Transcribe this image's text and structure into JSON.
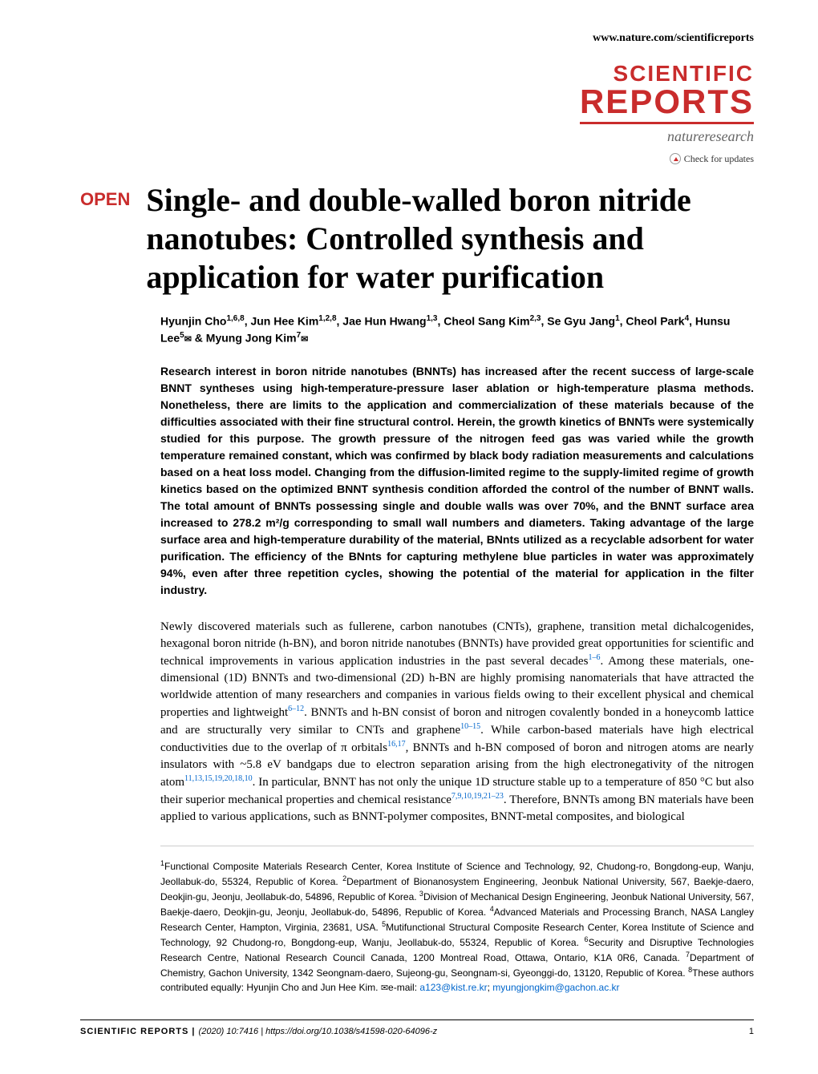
{
  "header": {
    "url": "www.nature.com/scientificreports",
    "logo_line1": "SCIENTIFIC",
    "logo_line2": "REPORTS",
    "logo_sub": "natureresearch",
    "check_updates": "Check for updates"
  },
  "article": {
    "open_badge": "OPEN",
    "title": "Single- and double-walled boron nitride nanotubes: Controlled synthesis and application for water purification",
    "authors_html": "Hyunjin Cho<sup>1,6,8</sup>, Jun Hee Kim<sup>1,2,8</sup>, Jae Hun Hwang<sup>1,3</sup>, Cheol Sang Kim<sup>2,3</sup>, Se Gyu Jang<sup>1</sup>, Cheol Park<sup>4</sup>, Hunsu Lee<sup>5</sup><span class='envelope'>✉</span> & Myung Jong Kim<sup>7</sup><span class='envelope'>✉</span>",
    "abstract": "Research interest in boron nitride nanotubes (BNNTs) has increased after the recent success of large-scale BNNT syntheses using high-temperature-pressure laser ablation or high-temperature plasma methods. Nonetheless, there are limits to the application and commercialization of these materials because of the difficulties associated with their fine structural control. Herein, the growth kinetics of BNNTs were systemically studied for this purpose. The growth pressure of the nitrogen feed gas was varied while the growth temperature remained constant, which was confirmed by black body radiation measurements and calculations based on a heat loss model. Changing from the diffusion-limited regime to the supply-limited regime of growth kinetics based on the optimized BNNT synthesis condition afforded the control of the number of BNNT walls. The total amount of BNNTs possessing single and double walls was over 70%, and the BNNT surface area increased to 278.2 m²/g corresponding to small wall numbers and diameters. Taking advantage of the large surface area and high-temperature durability of the material, BNnts utilized as a recyclable adsorbent for water purification. The efficiency of the BNnts for capturing methylene blue particles in water was approximately 94%, even after three repetition cycles, showing the potential of the material for application in the filter industry.",
    "body_text": "Newly discovered materials such as fullerene, carbon nanotubes (CNTs), graphene, transition metal dichalcogenides, hexagonal boron nitride (h-BN), and boron nitride nanotubes (BNNTs) have provided great opportunities for scientific and technical improvements in various application industries in the past several decades",
    "body_refs1": "1–6",
    "body_text2": ". Among these materials, one-dimensional (1D) BNNTs and two-dimensional (2D) h-BN are highly promising nanomaterials that have attracted the worldwide attention of many researchers and companies in various fields owing to their excellent physical and chemical properties and lightweight",
    "body_refs2": "6–12",
    "body_text3": ". BNNTs and h-BN consist of boron and nitrogen covalently bonded in a honeycomb lattice and are structurally very similar to CNTs and graphene",
    "body_refs3": "10–15",
    "body_text4": ". While carbon-based materials have high electrical conductivities due to the overlap of π orbitals",
    "body_refs4": "16,17",
    "body_text5": ", BNNTs and h-BN composed of boron and nitrogen atoms are nearly insulators with ~5.8 eV bandgaps due to electron separation arising from the high electronegativity of the nitrogen atom",
    "body_refs5": "11,13,15,19,20,18,10",
    "body_text6": ". In particular, BNNT has not only the unique 1D structure stable up to a temperature of 850 °C but also their superior mechanical properties and chemical resistance",
    "body_refs6": "7,9,10,19,21–23",
    "body_text7": ". Therefore, BNNTs among BN materials have been applied to various applications, such as BNNT-polymer composites, BNNT-metal composites, and biological",
    "affiliations_html": "<sup>1</sup>Functional Composite Materials Research Center, Korea Institute of Science and Technology, 92, Chudong-ro, Bongdong-eup, Wanju, Jeollabuk-do, 55324, Republic of Korea. <sup>2</sup>Department of Bionanosystem Engineering, Jeonbuk National University, 567, Baekje-daero, Deokjin-gu, Jeonju, Jeollabuk-do, 54896, Republic of Korea. <sup>3</sup>Division of Mechanical Design Engineering, Jeonbuk National University, 567, Baekje-daero, Deokjin-gu, Jeonju, Jeollabuk-do, 54896, Republic of Korea. <sup>4</sup>Advanced Materials and Processing Branch, NASA Langley Research Center, Hampton, Virginia, 23681, USA. <sup>5</sup>Mutifunctional Structural Composite Research Center, Korea Institute of Science and Technology, 92 Chudong-ro, Bongdong-eup, Wanju, Jeollabuk-do, 55324, Republic of Korea. <sup>6</sup>Security and Disruptive Technologies Research Centre, National Research Council Canada, 1200 Montreal Road, Ottawa, Ontario, K1A 0R6, Canada. <sup>7</sup>Department of Chemistry, Gachon University, 1342 Seongnam-daero, Sujeong-gu, Seongnam-si, Gyeonggi-do, 13120, Republic of Korea. <sup>8</sup>These authors contributed equally: Hyunjin Cho and Jun Hee Kim. <span class='envelope'>✉</span>e-mail: <span class='email'>a123@kist.re.kr</span>; <span class='email'>myungjongkim@gachon.ac.kr</span>"
  },
  "footer": {
    "journal": "SCIENTIFIC REPORTS",
    "citation": "(2020) 10:7416 | https://doi.org/10.1038/s41598-020-64096-z",
    "page_number": "1"
  },
  "colors": {
    "brand_red": "#c92c2c",
    "link_blue": "#0066cc",
    "text_black": "#000000",
    "text_gray": "#666666",
    "border_gray": "#cccccc"
  }
}
